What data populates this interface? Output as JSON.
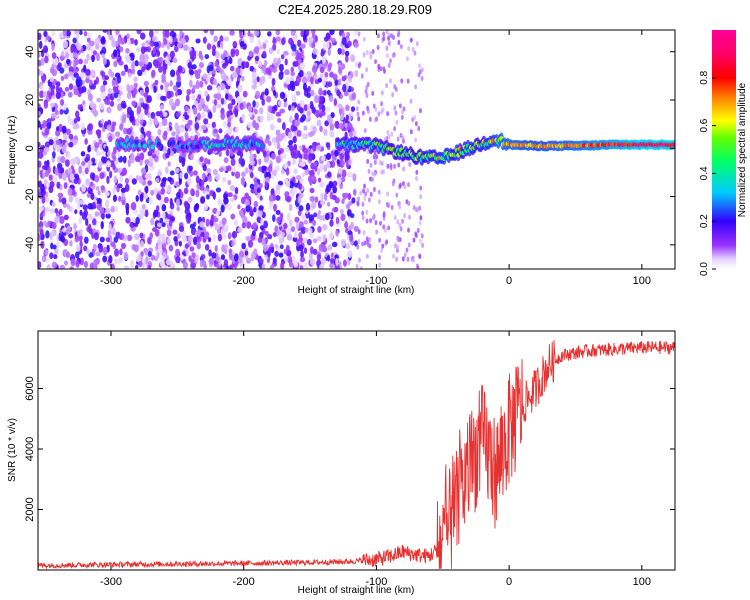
{
  "figure": {
    "title": "C2E4.2025.280.18.29.R09"
  },
  "colorbar": {
    "label": "Normalized spectral amplitude",
    "ticks": [
      "0.0",
      "0.2",
      "0.4",
      "0.6",
      "0.8"
    ],
    "range": [
      0,
      1
    ],
    "colormap": "rainbow (white-purple-blue-cyan-green-yellow-red-magenta)"
  },
  "chart_data": [
    {
      "type": "heatmap",
      "title": "",
      "xlabel": "Height of straight line (km)",
      "ylabel": "Frequency (Hz)",
      "xlim": [
        -355,
        125
      ],
      "ylim": [
        -50,
        49
      ],
      "xticks": [
        "-300",
        "-200",
        "-100",
        "0",
        "100"
      ],
      "yticks": [
        "-40",
        "-20",
        "0",
        "20",
        "40"
      ],
      "ridge": [
        {
          "x": -290,
          "y": 2,
          "z": 0.35
        },
        {
          "x": -240,
          "y": 1,
          "z": 0.3
        },
        {
          "x": -215,
          "y": 2,
          "z": 0.4
        },
        {
          "x": -195,
          "y": 2,
          "z": 0.35
        },
        {
          "x": -120,
          "y": 1.5,
          "z": 0.45
        },
        {
          "x": -100,
          "y": 1,
          "z": 0.5
        },
        {
          "x": -80,
          "y": -2,
          "z": 0.55
        },
        {
          "x": -65,
          "y": -4,
          "z": 0.6
        },
        {
          "x": -50,
          "y": -4,
          "z": 0.65
        },
        {
          "x": -35,
          "y": -1,
          "z": 0.6
        },
        {
          "x": -20,
          "y": 2,
          "z": 0.6
        },
        {
          "x": -10,
          "y": 4,
          "z": 0.7
        },
        {
          "x": 0,
          "y": 1.5,
          "z": 0.75
        },
        {
          "x": 20,
          "y": 1,
          "z": 0.7
        },
        {
          "x": 50,
          "y": 1,
          "z": 0.75
        },
        {
          "x": 80,
          "y": 1.5,
          "z": 0.85
        },
        {
          "x": 110,
          "y": 1.5,
          "z": 0.95
        },
        {
          "x": 125,
          "y": 1.5,
          "z": 0.95
        }
      ],
      "noise_region": {
        "x": [
          -355,
          -115
        ],
        "y": [
          -50,
          49
        ],
        "z": 0.25
      }
    },
    {
      "type": "line",
      "title": "",
      "xlabel": "Height of straight line (km)",
      "ylabel": "SNR (10 * v/v)",
      "xlim": [
        -355,
        125
      ],
      "ylim": [
        0,
        7900
      ],
      "xticks": [
        "-300",
        "-200",
        "-100",
        "0",
        "100"
      ],
      "yticks": [
        "2000",
        "4000",
        "6000"
      ],
      "color": "#e83030",
      "series": [
        {
          "x": [
            -355,
            -300,
            -250,
            -200,
            -150,
            -120,
            -100,
            -90,
            -80,
            -70,
            -60,
            -50,
            -40,
            -30,
            -20,
            -10,
            0,
            10,
            20,
            30,
            40,
            60,
            80,
            100,
            125
          ],
          "y": [
            150,
            180,
            200,
            220,
            250,
            280,
            350,
            450,
            600,
            500,
            450,
            900,
            2000,
            3400,
            4300,
            3200,
            4600,
            5400,
            6000,
            6800,
            7100,
            7250,
            7300,
            7350,
            7350
          ]
        }
      ]
    }
  ]
}
